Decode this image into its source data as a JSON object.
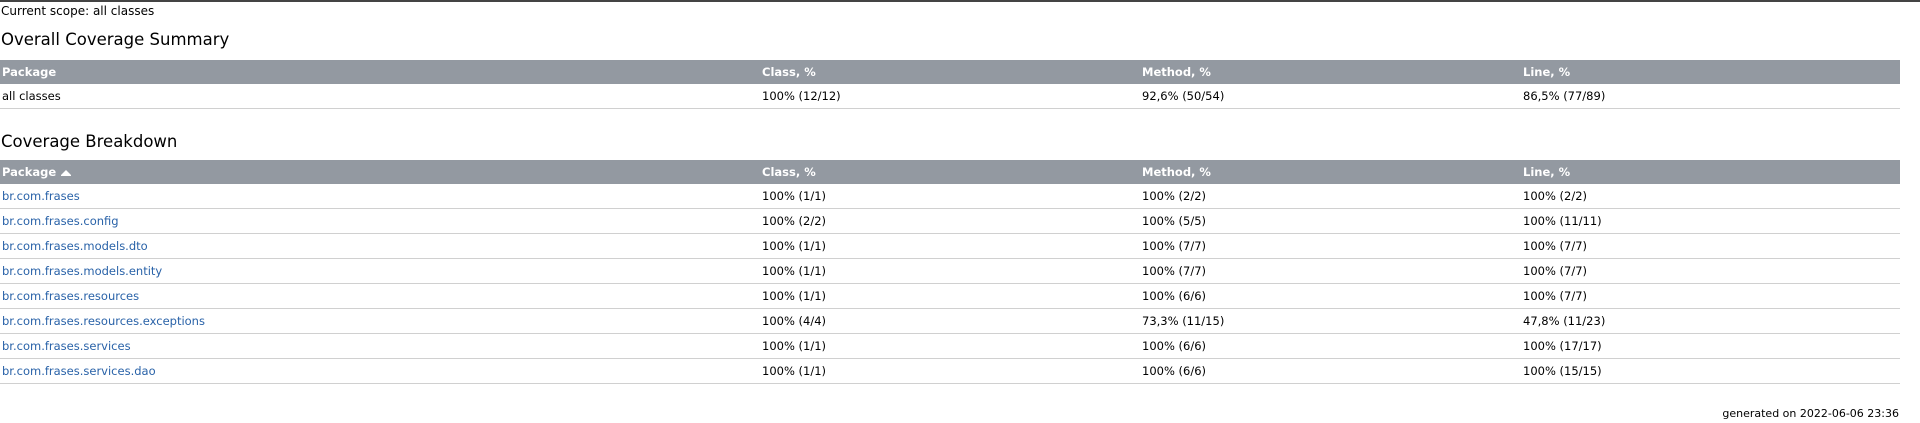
{
  "scope": {
    "label": "Current scope:",
    "value": "all classes"
  },
  "summary": {
    "title": "Overall Coverage Summary",
    "headers": {
      "package": "Package",
      "class": "Class, %",
      "method": "Method, %",
      "line": "Line, %"
    },
    "row": {
      "package": "all classes",
      "class": "100% (12/12)",
      "method": "92,6% (50/54)",
      "line": "86,5% (77/89)"
    }
  },
  "breakdown": {
    "title": "Coverage Breakdown",
    "sort_icon": "sort-ascending-icon",
    "headers": {
      "package": "Package",
      "class": "Class, %",
      "method": "Method, %",
      "line": "Line, %"
    },
    "rows": [
      {
        "package": "br.com.frases",
        "class": "100% (1/1)",
        "method": "100% (2/2)",
        "line": "100% (2/2)"
      },
      {
        "package": "br.com.frases.config",
        "class": "100% (2/2)",
        "method": "100% (5/5)",
        "line": "100% (11/11)"
      },
      {
        "package": "br.com.frases.models.dto",
        "class": "100% (1/1)",
        "method": "100% (7/7)",
        "line": "100% (7/7)"
      },
      {
        "package": "br.com.frases.models.entity",
        "class": "100% (1/1)",
        "method": "100% (7/7)",
        "line": "100% (7/7)"
      },
      {
        "package": "br.com.frases.resources",
        "class": "100% (1/1)",
        "method": "100% (6/6)",
        "line": "100% (7/7)"
      },
      {
        "package": "br.com.frases.resources.exceptions",
        "class": "100% (4/4)",
        "method": "73,3% (11/15)",
        "line": "47,8% (11/23)"
      },
      {
        "package": "br.com.frases.services",
        "class": "100% (1/1)",
        "method": "100% (6/6)",
        "line": "100% (17/17)"
      },
      {
        "package": "br.com.frases.services.dao",
        "class": "100% (1/1)",
        "method": "100% (6/6)",
        "line": "100% (15/15)"
      }
    ]
  },
  "footer": {
    "generated_label": "generated on",
    "generated_at": "2022-06-06 23:36"
  },
  "colors": {
    "header_bg": "#9399a1",
    "header_text": "#ffffff",
    "link": "#2962a8",
    "row_border": "#d0d0d0"
  }
}
